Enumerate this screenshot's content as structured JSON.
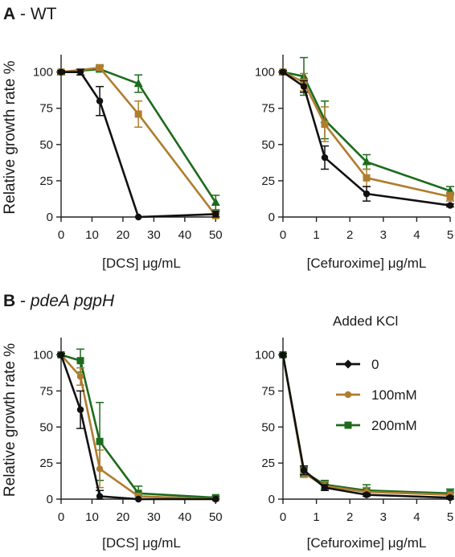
{
  "panels": {
    "a": {
      "letter": "A",
      "title": " - WT"
    },
    "b": {
      "letter": "B",
      "title": " - ",
      "title_italic": "pdeA pgpH"
    }
  },
  "legend": {
    "title": "Added KCl",
    "entries": [
      "0",
      "100mM",
      "200mM"
    ]
  },
  "colors": {
    "0": "#111111",
    "100mM": "#b07d2e",
    "200mM": "#1d6b1d"
  },
  "chart_data": [
    {
      "id": "A-DCS",
      "type": "line",
      "ylabel": "Relative growth rate %",
      "xlabel": "[DCS] μg/mL",
      "xlim": [
        0,
        52
      ],
      "ylim": [
        0,
        112
      ],
      "xticks": [
        0,
        10,
        20,
        30,
        40,
        50
      ],
      "yticks": [
        0,
        25,
        50,
        75,
        100
      ],
      "series": [
        {
          "name": "0",
          "marker": "circle",
          "x": [
            0,
            6.25,
            12.5,
            25,
            50
          ],
          "y": [
            100,
            100,
            80,
            0,
            2
          ],
          "err": [
            1,
            2,
            10,
            0,
            2
          ]
        },
        {
          "name": "100mM",
          "marker": "square",
          "x": [
            0,
            12.5,
            25,
            50
          ],
          "y": [
            100,
            103,
            71,
            1
          ],
          "err": [
            1,
            2,
            9,
            2
          ]
        },
        {
          "name": "200mM",
          "marker": "triangle",
          "x": [
            0,
            12.5,
            25,
            50
          ],
          "y": [
            100,
            102,
            92,
            10
          ],
          "err": [
            1,
            2,
            6,
            5
          ]
        }
      ]
    },
    {
      "id": "A-Cef",
      "type": "line",
      "ylabel": "",
      "xlabel": "[Cefuroxime] μg/mL",
      "xlim": [
        0,
        5
      ],
      "ylim": [
        0,
        112
      ],
      "xticks": [
        0,
        1,
        2,
        3,
        4,
        5
      ],
      "yticks": [
        0,
        25,
        50,
        75,
        100
      ],
      "series": [
        {
          "name": "0",
          "marker": "circle",
          "x": [
            0,
            0.625,
            1.25,
            2.5,
            5
          ],
          "y": [
            100,
            90,
            41,
            16,
            8
          ],
          "err": [
            1,
            4,
            8,
            5,
            1
          ]
        },
        {
          "name": "100mM",
          "marker": "square",
          "x": [
            0,
            0.625,
            1.25,
            2.5,
            5
          ],
          "y": [
            100,
            93,
            64,
            27,
            14
          ],
          "err": [
            1,
            6,
            12,
            6,
            3
          ]
        },
        {
          "name": "200mM",
          "marker": "triangle",
          "x": [
            0,
            0.625,
            1.25,
            2.5,
            5
          ],
          "y": [
            100,
            97,
            67,
            38,
            18
          ],
          "err": [
            1,
            13,
            13,
            5,
            3
          ]
        }
      ]
    },
    {
      "id": "B-DCS",
      "type": "line",
      "ylabel": "Relative growth rate %",
      "xlabel": "[DCS] μg/mL",
      "xlim": [
        0,
        52
      ],
      "ylim": [
        0,
        112
      ],
      "xticks": [
        0,
        10,
        20,
        30,
        40,
        50
      ],
      "yticks": [
        0,
        25,
        50,
        75,
        100
      ],
      "series": [
        {
          "name": "0",
          "marker": "circle",
          "x": [
            0,
            6.25,
            12.5,
            25,
            50
          ],
          "y": [
            100,
            62,
            2,
            0,
            0
          ],
          "err": [
            1,
            13,
            4,
            0,
            0
          ]
        },
        {
          "name": "100mM",
          "marker": "circle",
          "x": [
            0,
            6.25,
            12.5,
            25,
            50
          ],
          "y": [
            100,
            85,
            21,
            2,
            0
          ],
          "err": [
            1,
            6,
            13,
            2,
            1
          ]
        },
        {
          "name": "200mM",
          "marker": "square",
          "x": [
            0,
            6.25,
            12.5,
            25,
            50
          ],
          "y": [
            100,
            96,
            40,
            4,
            1
          ],
          "err": [
            1,
            8,
            27,
            5,
            1
          ]
        }
      ]
    },
    {
      "id": "B-Cef",
      "type": "line",
      "ylabel": "",
      "xlabel": "[Cefuroxime] μg/mL",
      "xlim": [
        0,
        5
      ],
      "ylim": [
        0,
        112
      ],
      "xticks": [
        0,
        1,
        2,
        3,
        4,
        5
      ],
      "yticks": [
        0,
        25,
        50,
        75,
        100
      ],
      "series": [
        {
          "name": "0",
          "marker": "circle",
          "x": [
            0,
            0.625,
            1.25,
            2.5,
            5
          ],
          "y": [
            100,
            20,
            8,
            3,
            1
          ],
          "err": [
            1,
            3,
            2,
            1,
            1
          ]
        },
        {
          "name": "100mM",
          "marker": "circle",
          "x": [
            0,
            0.625,
            1.25,
            2.5,
            5
          ],
          "y": [
            100,
            18,
            9,
            5,
            3
          ],
          "err": [
            1,
            3,
            3,
            3,
            2
          ]
        },
        {
          "name": "200mM",
          "marker": "square",
          "x": [
            0,
            0.625,
            1.25,
            2.5,
            5
          ],
          "y": [
            100,
            19,
            10,
            6,
            4
          ],
          "err": [
            1,
            3,
            3,
            4,
            3
          ]
        }
      ]
    }
  ]
}
